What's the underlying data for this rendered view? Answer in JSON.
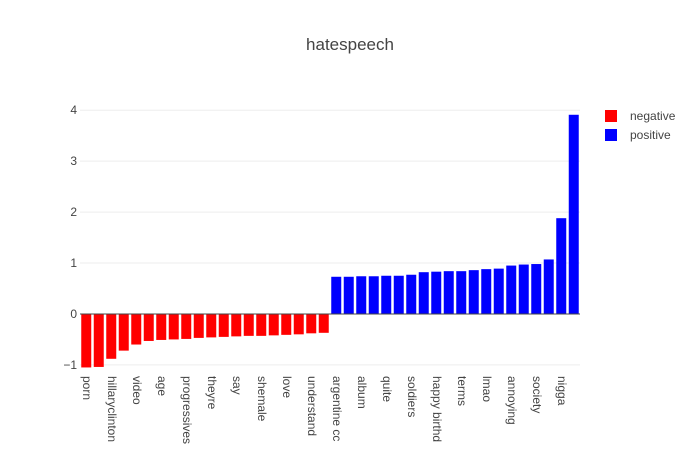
{
  "chart_data": {
    "type": "bar",
    "title": "hatespeech",
    "xlabel": "",
    "ylabel": "",
    "ylim": [
      -1.1,
      4.2
    ],
    "yticks": [
      {
        "value": -1,
        "label": "−1"
      },
      {
        "value": 0,
        "label": "0"
      },
      {
        "value": 1,
        "label": "1"
      },
      {
        "value": 2,
        "label": "2"
      },
      {
        "value": 3,
        "label": "3"
      },
      {
        "value": 4,
        "label": "4"
      }
    ],
    "grid": true,
    "legend_position": "top-right",
    "colors": {
      "negative": "#ff0000",
      "positive": "#0000ff",
      "grid": "#eeeeee",
      "zero_line": "#444444",
      "text": "#444444"
    },
    "categories": [
      "porn",
      "",
      "hillaryclinton",
      "",
      "video",
      "",
      "age",
      "",
      "progressives",
      "",
      "theyre",
      "",
      "say",
      "",
      "shemale",
      "",
      "love",
      "",
      "understand",
      "",
      "argentine cc",
      "",
      "album",
      "",
      "quite",
      "",
      "soldiers",
      "",
      "happy birthd",
      "",
      "terms",
      "",
      "lmao",
      "",
      "annoying",
      "",
      "society",
      "",
      "nigga",
      ""
    ],
    "tick_labels": [
      {
        "index": 0,
        "label": "porn"
      },
      {
        "index": 2,
        "label": "hillaryclinton"
      },
      {
        "index": 4,
        "label": "video"
      },
      {
        "index": 6,
        "label": "age"
      },
      {
        "index": 8,
        "label": "progressives"
      },
      {
        "index": 10,
        "label": "theyre"
      },
      {
        "index": 12,
        "label": "say"
      },
      {
        "index": 14,
        "label": "shemale"
      },
      {
        "index": 16,
        "label": "love"
      },
      {
        "index": 18,
        "label": "understand"
      },
      {
        "index": 20,
        "label": "argentine cc"
      },
      {
        "index": 22,
        "label": "album"
      },
      {
        "index": 24,
        "label": "quite"
      },
      {
        "index": 26,
        "label": "soldiers"
      },
      {
        "index": 28,
        "label": "happy birthd"
      },
      {
        "index": 30,
        "label": "terms"
      },
      {
        "index": 32,
        "label": "lmao"
      },
      {
        "index": 34,
        "label": "annoying"
      },
      {
        "index": 36,
        "label": "society"
      },
      {
        "index": 38,
        "label": "nigga"
      }
    ],
    "series": [
      {
        "name": "negative",
        "color": "#ff0000",
        "values": [
          -1.05,
          -1.04,
          -0.88,
          -0.72,
          -0.6,
          -0.53,
          -0.51,
          -0.5,
          -0.49,
          -0.47,
          -0.46,
          -0.45,
          -0.44,
          -0.43,
          -0.43,
          -0.42,
          -0.41,
          -0.4,
          -0.38,
          -0.37,
          null,
          null,
          null,
          null,
          null,
          null,
          null,
          null,
          null,
          null,
          null,
          null,
          null,
          null,
          null,
          null,
          null,
          null,
          null,
          null
        ]
      },
      {
        "name": "positive",
        "color": "#0000ff",
        "values": [
          null,
          null,
          null,
          null,
          null,
          null,
          null,
          null,
          null,
          null,
          null,
          null,
          null,
          null,
          null,
          null,
          null,
          null,
          null,
          null,
          0.73,
          0.73,
          0.74,
          0.74,
          0.75,
          0.75,
          0.77,
          0.82,
          0.83,
          0.84,
          0.84,
          0.86,
          0.88,
          0.89,
          0.95,
          0.97,
          0.98,
          1.07,
          1.88,
          3.91
        ]
      }
    ]
  }
}
